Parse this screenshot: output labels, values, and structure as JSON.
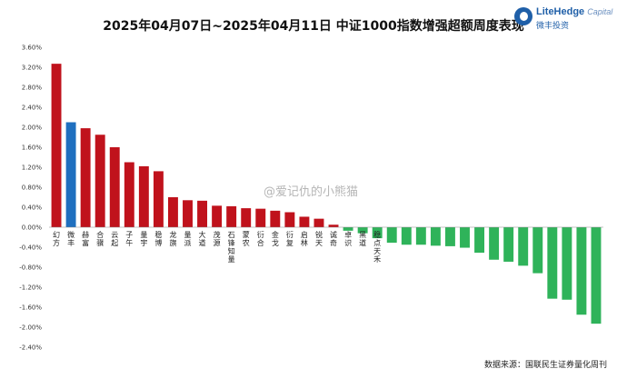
{
  "title": "2025年04月07日~2025年04月11日 中证1000指数增强超额周度表现",
  "logo": {
    "name": "LiteHedge",
    "name_suffix": "Capital",
    "subtitle": "微丰投资"
  },
  "watermark": "@爱记仇的小熊猫",
  "source": "数据来源：国联民生证券量化周刊",
  "colors": {
    "positive": "#c0121c",
    "highlight": "#1f6fbf",
    "negative": "#2fb35a"
  },
  "chart_data": {
    "type": "bar",
    "ylim": [
      -2.4,
      3.6
    ],
    "yticks": [
      3.6,
      3.2,
      2.8,
      2.4,
      2.0,
      1.6,
      1.2,
      0.8,
      0.4,
      0.0,
      -0.4,
      -0.8,
      -1.2,
      -1.6,
      -2.0,
      -2.4
    ],
    "ytick_labels": [
      "3.60%",
      "3.20%",
      "2.80%",
      "2.40%",
      "2.00%",
      "1.60%",
      "1.20%",
      "0.80%",
      "0.40%",
      "0.00%",
      "-0.40%",
      "-0.80%",
      "-1.20%",
      "-1.60%",
      "-2.00%",
      "-2.40%"
    ],
    "categories": [
      "幻方",
      "微丰",
      "赫富",
      "合骥",
      "云起",
      "子午",
      "量宇",
      "稳博",
      "龙旗",
      "量派",
      "大道",
      "茂源",
      "石锋知量",
      "蒙农",
      "衍合",
      "金戈",
      "衍复",
      "启林",
      "锐天",
      "诚奇",
      "卓识",
      "黑道",
      "稳点天禾",
      "",
      "",
      "",
      "",
      "",
      "",
      "",
      "",
      "",
      "",
      "",
      "",
      "",
      "",
      ""
    ],
    "values": [
      3.27,
      2.1,
      1.98,
      1.85,
      1.6,
      1.3,
      1.22,
      1.12,
      0.6,
      0.54,
      0.53,
      0.43,
      0.42,
      0.38,
      0.37,
      0.33,
      0.3,
      0.21,
      0.17,
      0.05,
      -0.07,
      -0.12,
      -0.22,
      -0.31,
      -0.35,
      -0.35,
      -0.37,
      -0.38,
      -0.41,
      -0.51,
      -0.65,
      -0.69,
      -0.77,
      -0.92,
      -1.43,
      -1.45,
      -1.75,
      -1.93
    ],
    "highlight_index": 1,
    "grid": false
  }
}
